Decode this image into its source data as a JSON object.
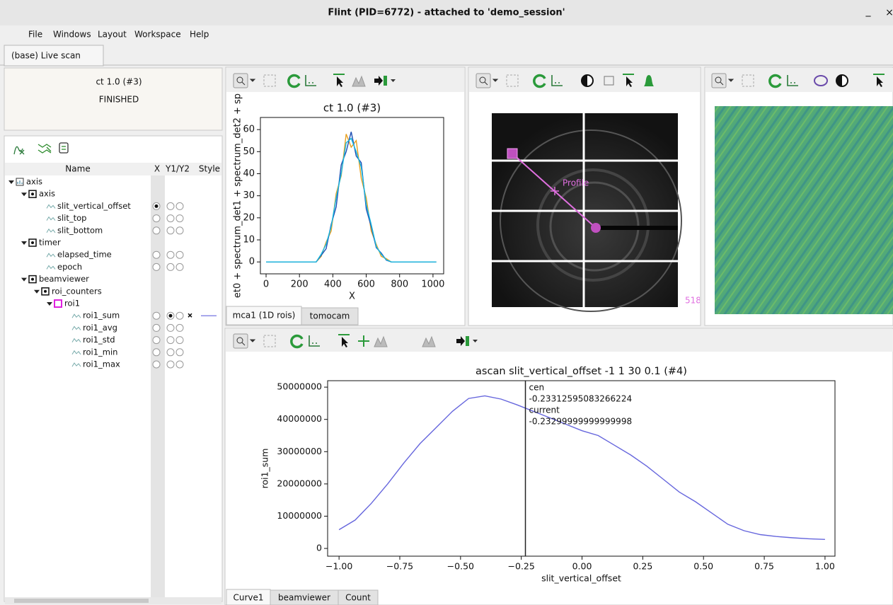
{
  "window": {
    "title": "Flint (PID=6772) - attached to 'demo_session'",
    "controls": [
      "_",
      "×"
    ]
  },
  "menu": [
    "File",
    "Windows",
    "Layout",
    "Workspace",
    "Help"
  ],
  "tabs": [
    "(base) Live scan"
  ],
  "scan_status": {
    "name": "ct 1.0 (#3)",
    "state": "FINISHED"
  },
  "tree": {
    "columns": [
      "Name",
      "X",
      "Y1/Y2",
      "Style"
    ],
    "nodes": [
      {
        "label": "axis",
        "children": [
          {
            "label": "axis",
            "children": [
              {
                "label": "slit_vertical_offset",
                "x": true
              },
              {
                "label": "slit_top"
              },
              {
                "label": "slit_bottom"
              }
            ]
          },
          {
            "label": "timer",
            "children": [
              {
                "label": "elapsed_time"
              },
              {
                "label": "epoch"
              }
            ]
          },
          {
            "label": "beamviewer",
            "children": [
              {
                "label": "roi_counters",
                "children": [
                  {
                    "label": "roi1",
                    "children": [
                      {
                        "label": "roi1_sum",
                        "y1": true,
                        "style": "#6666dd"
                      },
                      {
                        "label": "roi1_avg"
                      },
                      {
                        "label": "roi1_std"
                      },
                      {
                        "label": "roi1_min"
                      },
                      {
                        "label": "roi1_max"
                      }
                    ]
                  }
                ]
              }
            ]
          }
        ]
      }
    ]
  },
  "mca_plot": {
    "type": "line",
    "title": "ct 1.0 (#3)",
    "x_label": "X",
    "y_label": "et0 + spectrum_det1 + spectrum_det2 + sp",
    "x": [
      0,
      30,
      60,
      90,
      120,
      150,
      180,
      210,
      240,
      270,
      300,
      330,
      360,
      390,
      420,
      450,
      480,
      510,
      540,
      570,
      600,
      630,
      660,
      690,
      720,
      750,
      780,
      810,
      840,
      870,
      900,
      930,
      960,
      990,
      1020
    ],
    "series": [
      {
        "color": "#e8a020",
        "values": [
          0,
          0,
          0,
          0,
          0,
          0,
          0,
          0,
          0,
          0,
          0,
          2.5,
          9,
          14,
          31,
          39,
          58,
          52,
          55,
          38,
          29,
          14,
          8,
          2.5,
          1.5,
          0,
          0,
          0,
          0,
          0,
          0,
          0,
          0,
          0,
          0
        ]
      },
      {
        "color": "#1f4fb4",
        "values": [
          0,
          0,
          0,
          0,
          0,
          0,
          0,
          0,
          0,
          0,
          0,
          3,
          6,
          17,
          25,
          44,
          50,
          59,
          48,
          45,
          24,
          16,
          6.5,
          4,
          0.8,
          0,
          0,
          0,
          0,
          0,
          0,
          0,
          0,
          0,
          0
        ]
      },
      {
        "color": "#17b8e0",
        "values": [
          0,
          0,
          0,
          0,
          0,
          0,
          0,
          0,
          0,
          0,
          0,
          3.5,
          8,
          16,
          29,
          40,
          54,
          56,
          50,
          43,
          26,
          17,
          7,
          3.5,
          1,
          0,
          0,
          0,
          0,
          0,
          0,
          0,
          0,
          0,
          0
        ]
      }
    ],
    "xlim": [
      -34,
      1064
    ],
    "ylim": [
      -5.4,
      65.5
    ],
    "xticks": [
      0,
      200,
      400,
      600,
      800,
      1000
    ],
    "yticks": [
      0,
      10,
      20,
      30,
      40,
      50,
      60
    ]
  },
  "image_tabs": [
    "mca1 (1D rois)",
    "tomocam"
  ],
  "image_plot": {
    "profile_label": "Profile",
    "edge_label": "518"
  },
  "bottom_tabs": [
    "Curve1",
    "beamviewer",
    "Count"
  ],
  "ascan_plot": {
    "type": "line",
    "title": "ascan slit_vertical_offset -1 1 30 0.1 (#4)",
    "x_label": "slit_vertical_offset",
    "y_label": "roi1_sum",
    "x": [
      -1,
      -0.9333,
      -0.8667,
      -0.8,
      -0.7333,
      -0.6667,
      -0.6,
      -0.5333,
      -0.4667,
      -0.4,
      -0.3333,
      -0.2667,
      -0.2,
      -0.1333,
      -0.0667,
      0,
      0.0667,
      0.1333,
      0.2,
      0.2667,
      0.3333,
      0.4,
      0.4667,
      0.5333,
      0.6,
      0.6667,
      0.7333,
      0.8,
      0.8667,
      0.9333,
      1
    ],
    "series": [
      {
        "color": "#6666dd",
        "values": [
          5800000,
          8800000,
          14000000,
          20000000,
          26500000,
          32500000,
          37500000,
          42500000,
          46500000,
          47300000,
          46300000,
          44500000,
          42500000,
          40500000,
          38500000,
          36500000,
          35000000,
          32000000,
          29000000,
          25500000,
          21500000,
          17500000,
          14500000,
          11000000,
          7500000,
          5500000,
          4300000,
          3700000,
          3300000,
          3000000,
          2800000
        ]
      }
    ],
    "xlim": [
      -1.047,
      1.041
    ],
    "ylim": [
      -2400000,
      52000000
    ],
    "xticks": [
      {
        "value": -1,
        "label": "−1.00"
      },
      {
        "value": -0.75,
        "label": "−0.75"
      },
      {
        "value": -0.5,
        "label": "−0.50"
      },
      {
        "value": -0.25,
        "label": "−0.25"
      },
      {
        "value": 0,
        "label": "0.00"
      },
      {
        "value": 0.25,
        "label": "0.25"
      },
      {
        "value": 0.5,
        "label": "0.50"
      },
      {
        "value": 0.75,
        "label": "0.75"
      },
      {
        "value": 1,
        "label": "1.00"
      }
    ],
    "yticks": [
      0,
      10000000,
      20000000,
      30000000,
      40000000,
      50000000
    ],
    "annotations": {
      "cen_label": "cen",
      "cen": {
        "value": -0.23312595083266224,
        "label": "-0.23312595083266224"
      },
      "current_label": "current",
      "current": {
        "value": -0.23299999999999998,
        "label": "-0.23299999999999998"
      }
    }
  }
}
